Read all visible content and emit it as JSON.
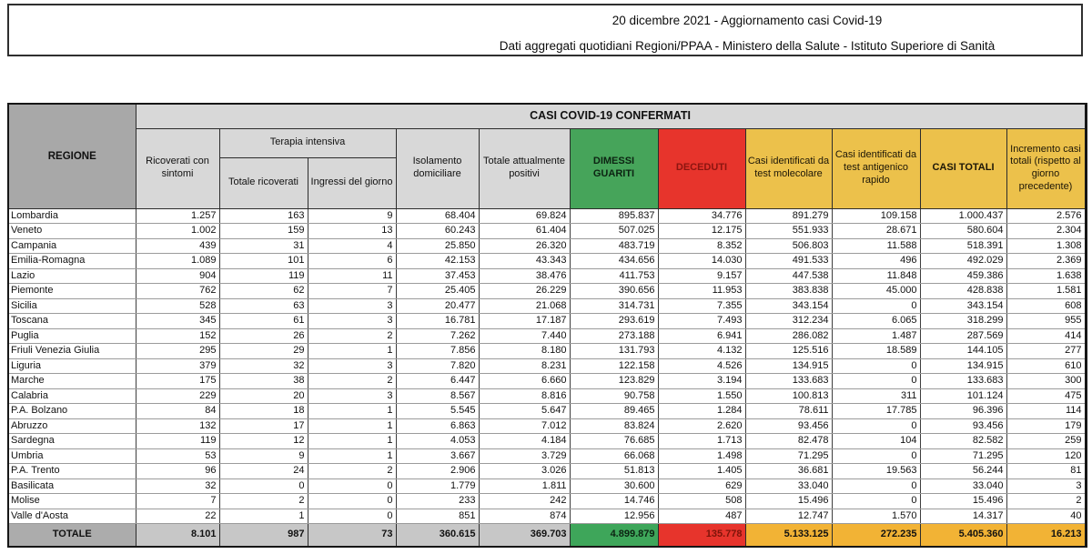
{
  "title": {
    "line1": "20 dicembre 2021 - Aggiornamento casi Covid-19",
    "line2": "Dati aggregati quotidiani Regioni/PPAA - Ministero della Salute - Istituto Superiore di Sanità"
  },
  "colors": {
    "green": "#46a45a",
    "red": "#e7342c",
    "yellow": "#ecc14b",
    "yellow_total": "#f2b335",
    "gray_region_header": "#a8a8a8",
    "gray_subheader": "#d8d8d8",
    "gray_total_row": "#c7c7c7",
    "deceduti_text": "#8b1510"
  },
  "table": {
    "region_header": "REGIONE",
    "group_header": "CASI COVID-19 CONFERMATI",
    "columns": {
      "ricoverati": "Ricoverati con sintomi",
      "terapia_intensiva": "Terapia intensiva",
      "totale_ricoverati": "Totale ricoverati",
      "ingressi": "Ingressi del giorno",
      "isolamento": "Isolamento domiciliare",
      "attualmente_positivi": "Totale attualmente positivi",
      "dimessi": "DIMESSI GUARITI",
      "deceduti": "DECEDUTI",
      "molecolare": "Casi identificati da test molecolare",
      "antigenico": "Casi identificati da test antigenico rapido",
      "casi_totali": "CASI TOTALI",
      "incremento": "Incremento casi totali (rispetto al giorno precedente)"
    },
    "rows": [
      [
        "Lombardia",
        "1.257",
        "163",
        "9",
        "68.404",
        "69.824",
        "895.837",
        "34.776",
        "891.279",
        "109.158",
        "1.000.437",
        "2.576"
      ],
      [
        "Veneto",
        "1.002",
        "159",
        "13",
        "60.243",
        "61.404",
        "507.025",
        "12.175",
        "551.933",
        "28.671",
        "580.604",
        "2.304"
      ],
      [
        "Campania",
        "439",
        "31",
        "4",
        "25.850",
        "26.320",
        "483.719",
        "8.352",
        "506.803",
        "11.588",
        "518.391",
        "1.308"
      ],
      [
        "Emilia-Romagna",
        "1.089",
        "101",
        "6",
        "42.153",
        "43.343",
        "434.656",
        "14.030",
        "491.533",
        "496",
        "492.029",
        "2.369"
      ],
      [
        "Lazio",
        "904",
        "119",
        "11",
        "37.453",
        "38.476",
        "411.753",
        "9.157",
        "447.538",
        "11.848",
        "459.386",
        "1.638"
      ],
      [
        "Piemonte",
        "762",
        "62",
        "7",
        "25.405",
        "26.229",
        "390.656",
        "11.953",
        "383.838",
        "45.000",
        "428.838",
        "1.581"
      ],
      [
        "Sicilia",
        "528",
        "63",
        "3",
        "20.477",
        "21.068",
        "314.731",
        "7.355",
        "343.154",
        "0",
        "343.154",
        "608"
      ],
      [
        "Toscana",
        "345",
        "61",
        "3",
        "16.781",
        "17.187",
        "293.619",
        "7.493",
        "312.234",
        "6.065",
        "318.299",
        "955"
      ],
      [
        "Puglia",
        "152",
        "26",
        "2",
        "7.262",
        "7.440",
        "273.188",
        "6.941",
        "286.082",
        "1.487",
        "287.569",
        "414"
      ],
      [
        "Friuli Venezia Giulia",
        "295",
        "29",
        "1",
        "7.856",
        "8.180",
        "131.793",
        "4.132",
        "125.516",
        "18.589",
        "144.105",
        "277"
      ],
      [
        "Liguria",
        "379",
        "32",
        "3",
        "7.820",
        "8.231",
        "122.158",
        "4.526",
        "134.915",
        "0",
        "134.915",
        "610"
      ],
      [
        "Marche",
        "175",
        "38",
        "2",
        "6.447",
        "6.660",
        "123.829",
        "3.194",
        "133.683",
        "0",
        "133.683",
        "300"
      ],
      [
        "Calabria",
        "229",
        "20",
        "3",
        "8.567",
        "8.816",
        "90.758",
        "1.550",
        "100.813",
        "311",
        "101.124",
        "475"
      ],
      [
        "P.A. Bolzano",
        "84",
        "18",
        "1",
        "5.545",
        "5.647",
        "89.465",
        "1.284",
        "78.611",
        "17.785",
        "96.396",
        "114"
      ],
      [
        "Abruzzo",
        "132",
        "17",
        "1",
        "6.863",
        "7.012",
        "83.824",
        "2.620",
        "93.456",
        "0",
        "93.456",
        "179"
      ],
      [
        "Sardegna",
        "119",
        "12",
        "1",
        "4.053",
        "4.184",
        "76.685",
        "1.713",
        "82.478",
        "104",
        "82.582",
        "259"
      ],
      [
        "Umbria",
        "53",
        "9",
        "1",
        "3.667",
        "3.729",
        "66.068",
        "1.498",
        "71.295",
        "0",
        "71.295",
        "120"
      ],
      [
        "P.A. Trento",
        "96",
        "24",
        "2",
        "2.906",
        "3.026",
        "51.813",
        "1.405",
        "36.681",
        "19.563",
        "56.244",
        "81"
      ],
      [
        "Basilicata",
        "32",
        "0",
        "0",
        "1.779",
        "1.811",
        "30.600",
        "629",
        "33.040",
        "0",
        "33.040",
        "3"
      ],
      [
        "Molise",
        "7",
        "2",
        "0",
        "233",
        "242",
        "14.746",
        "508",
        "15.496",
        "0",
        "15.496",
        "2"
      ],
      [
        "Valle d'Aosta",
        "22",
        "1",
        "0",
        "851",
        "874",
        "12.956",
        "487",
        "12.747",
        "1.570",
        "14.317",
        "40"
      ]
    ],
    "total_row": [
      "TOTALE",
      "8.101",
      "987",
      "73",
      "360.615",
      "369.703",
      "4.899.879",
      "135.778",
      "5.133.125",
      "272.235",
      "5.405.360",
      "16.213"
    ]
  }
}
